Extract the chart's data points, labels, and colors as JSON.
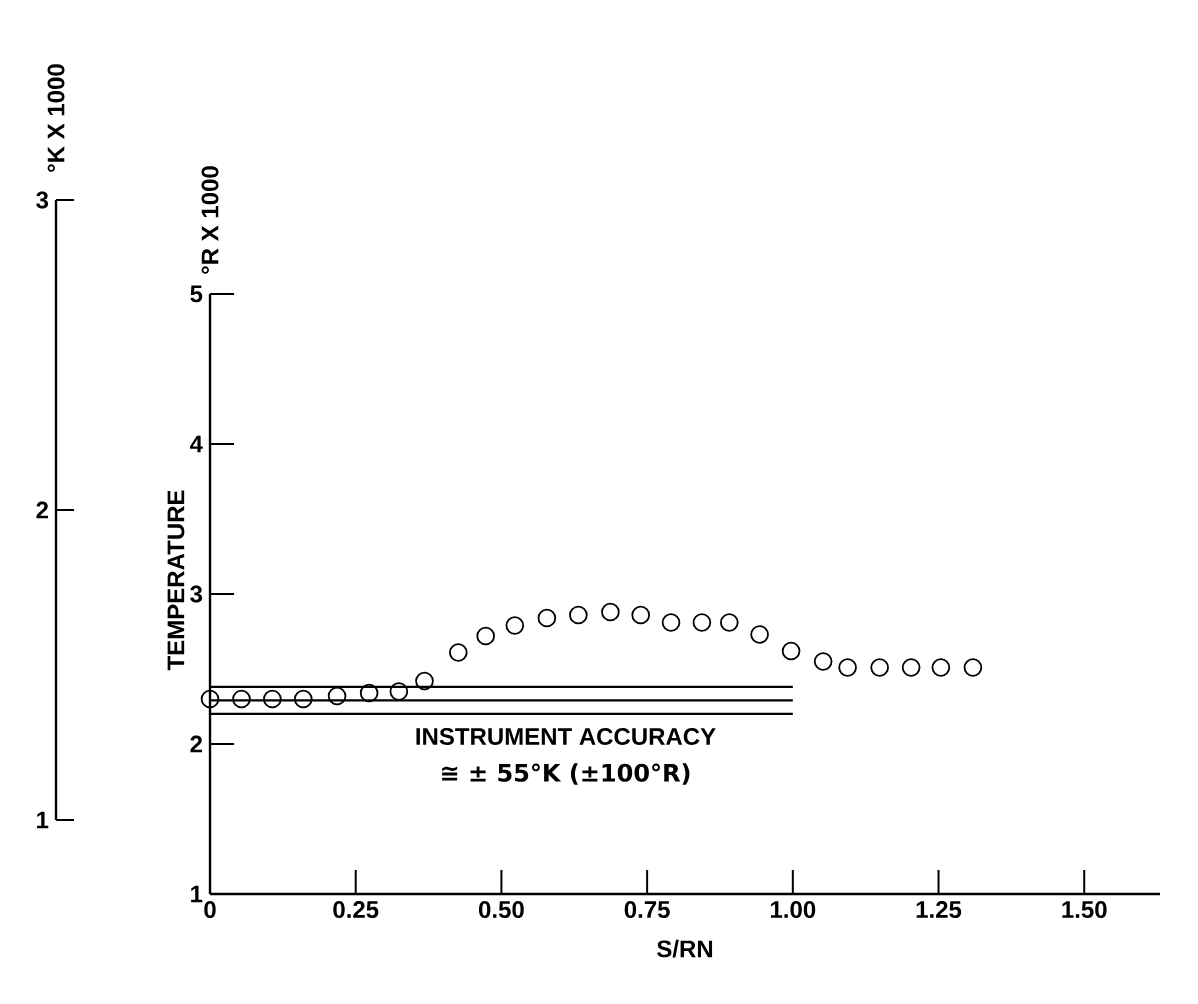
{
  "chart_data": {
    "type": "scatter",
    "xlabel": "S/RN",
    "ylabel": "°R X 1000",
    "y2label": "°K X 1000",
    "annotations": [
      "TEMPERATURE",
      "INSTRUMENT ACCURACY",
      "≅ ± 55°K (±100°R)"
    ],
    "marker": "circle",
    "xlim": [
      0,
      1.63
    ],
    "ylim": [
      1,
      5
    ],
    "y2lim": [
      1,
      3
    ],
    "xticks": [
      0,
      0.25,
      {
        "value": 0.5,
        "label": "0.50"
      },
      0.75,
      {
        "value": 1,
        "label": "1.00"
      },
      1.25,
      {
        "value": 1.5,
        "label": "1.50"
      }
    ],
    "yticks": [
      1,
      2,
      3,
      4,
      5
    ],
    "y2ticks": [
      1,
      2,
      3
    ],
    "series": [
      {
        "type": "line",
        "marker": "none",
        "color": "#000000",
        "x": [
          0,
          1
        ],
        "values": [
          2.38,
          2.38
        ]
      },
      {
        "type": "line",
        "marker": "none",
        "color": "#000000",
        "x": [
          0,
          1
        ],
        "values": [
          2.29,
          2.29
        ]
      },
      {
        "type": "line",
        "marker": "none",
        "color": "#000000",
        "x": [
          0,
          1
        ],
        "values": [
          2.2,
          2.2
        ]
      },
      {
        "color": "#000000",
        "x": [
          0,
          0.054,
          0.107,
          0.16,
          0.218,
          0.273,
          0.324,
          0.368,
          0.426,
          0.473,
          0.523,
          0.578,
          0.632,
          0.687,
          0.739,
          0.791,
          0.844,
          0.891,
          0.943,
          0.997,
          1.052,
          1.094,
          1.149,
          1.203,
          1.254,
          1.309
        ],
        "values": [
          2.3,
          2.3,
          2.3,
          2.3,
          2.32,
          2.34,
          2.35,
          2.42,
          2.61,
          2.72,
          2.79,
          2.84,
          2.86,
          2.88,
          2.86,
          2.81,
          2.81,
          2.81,
          2.73,
          2.62,
          2.55,
          2.51,
          2.51,
          2.51,
          2.51,
          2.51
        ]
      }
    ]
  }
}
